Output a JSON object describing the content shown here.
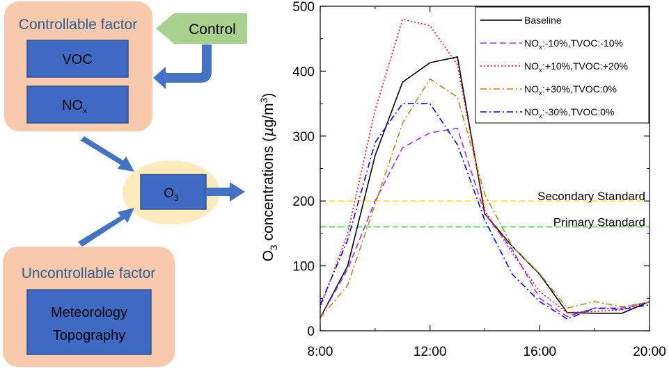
{
  "diagram": {
    "controllable_title": "Controllable factor",
    "voc_label": "VOC",
    "nox_base": "NO",
    "nox_sub": "x",
    "control_label": "Control",
    "o3_base": "O",
    "o3_sub": "3",
    "uncontrollable_title": "Uncontrollable factor",
    "meteo_line1": "Meteorology",
    "meteo_line2": "Topography",
    "colors": {
      "peach_box": "#f8c9ac",
      "blue_box": "#3e6ac4",
      "arrow_blue": "#4472c4",
      "hexagon_green": "#a9d18e",
      "ellipse_yellow": "#fdebbd",
      "title_text": "#2e5d8e"
    }
  },
  "chart_data": {
    "type": "line",
    "ylabel_prefix": "O",
    "ylabel_sub": "3",
    "ylabel_main": " concentrations (",
    "ylabel_mu": "µ",
    "ylabel_unit": "g/m",
    "ylabel_sup": "3",
    "ylabel_close": ")",
    "xlim": [
      8,
      20
    ],
    "ylim": [
      0,
      500
    ],
    "xticks": [
      8,
      12,
      16,
      20
    ],
    "xtick_labels": [
      "8:00",
      "12:00",
      "16:00",
      "20:00"
    ],
    "yticks": [
      0,
      100,
      200,
      300,
      400,
      500
    ],
    "ytick_labels": [
      "0",
      "100",
      "200",
      "300",
      "400",
      "500"
    ],
    "legend_position": "top-right",
    "series": [
      {
        "name": "Baseline",
        "color": "#000000",
        "dash": "solid",
        "x": [
          8,
          9,
          10,
          11,
          12,
          13,
          14,
          15,
          16,
          17,
          18,
          19,
          20
        ],
        "y": [
          20,
          100,
          270,
          383,
          413,
          422,
          180,
          130,
          87,
          28,
          27,
          27,
          45
        ]
      },
      {
        "name": "NOx:-10%,TVOC:-10%",
        "name_parts": [
          "NO",
          "x",
          ":-10%,TVOC:-10%"
        ],
        "color": "#9b30ff",
        "dash": "dash",
        "x": [
          8,
          9,
          10,
          11,
          12,
          13,
          14,
          15,
          16,
          17,
          18,
          19,
          20
        ],
        "y": [
          20,
          95,
          200,
          282,
          305,
          312,
          180,
          125,
          50,
          22,
          35,
          35,
          45
        ]
      },
      {
        "name": "NOx:+10%,TVOC:+20%",
        "name_parts": [
          "NO",
          "x",
          ":+10%,TVOC:+20%"
        ],
        "color": "#ff0000",
        "dash": "dot",
        "x": [
          8,
          9,
          10,
          11,
          12,
          13,
          14,
          15,
          16,
          17,
          18,
          19,
          20
        ],
        "y": [
          35,
          150,
          340,
          480,
          470,
          410,
          185,
          120,
          60,
          28,
          30,
          32,
          45
        ]
      },
      {
        "name": "NOx:+30%,TVOC:0%",
        "name_parts": [
          "NO",
          "x",
          ":+30%,TVOC:0%"
        ],
        "color": "#b8860b",
        "dash": "dashdot",
        "x": [
          8,
          9,
          10,
          11,
          12,
          13,
          14,
          15,
          16,
          17,
          18,
          19,
          20
        ],
        "y": [
          20,
          70,
          195,
          320,
          388,
          360,
          210,
          130,
          88,
          35,
          45,
          37,
          44
        ]
      },
      {
        "name": "NOx:-30%,TVOC:0%",
        "name_parts": [
          "NO",
          "x",
          ":-30%,TVOC:0%"
        ],
        "color": "#0000ff",
        "dash": "dashdot",
        "x": [
          8,
          9,
          10,
          11,
          12,
          13,
          14,
          15,
          16,
          17,
          18,
          19,
          20
        ],
        "y": [
          40,
          140,
          290,
          350,
          350,
          287,
          170,
          87,
          45,
          18,
          35,
          33,
          40
        ]
      }
    ],
    "reference_lines": [
      {
        "label": "Secondary Standard",
        "y": 200,
        "color": "#ffd700"
      },
      {
        "label": "Primary Standard",
        "y": 160,
        "color": "#00dd00"
      }
    ]
  }
}
